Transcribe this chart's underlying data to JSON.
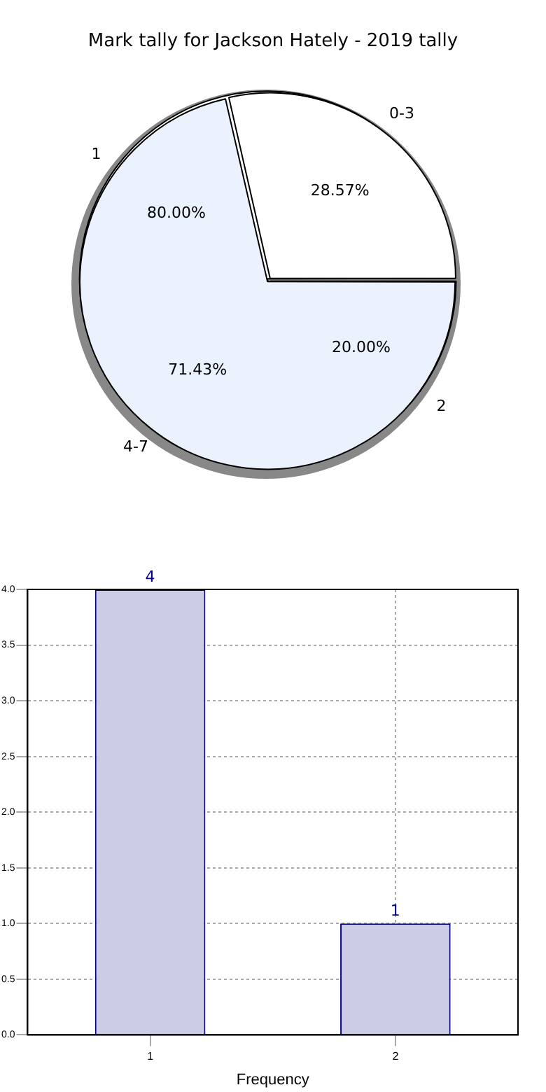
{
  "chart_data": [
    {
      "type": "pie",
      "title": "Mark tally for Jackson Hately - 2019 tally",
      "categories": [
        "0-3",
        "4-7"
      ],
      "values": [
        28.57,
        71.43
      ],
      "colors": [
        "#ffffff",
        "#ebf1fd"
      ],
      "value_labels": [
        "28.57%",
        "71.43%"
      ]
    },
    {
      "type": "pie",
      "categories": [
        "1",
        "2"
      ],
      "values": [
        80,
        20
      ],
      "colors": [
        "#ffffff",
        "#ebf1fd"
      ],
      "value_labels": [
        "80.00%",
        "20.00%"
      ]
    },
    {
      "type": "bar",
      "categories": [
        "1",
        "2"
      ],
      "values": [
        4,
        1
      ],
      "color": "#cccce6",
      "xlabel": "Frequency",
      "ylim": [
        0,
        4
      ],
      "yticks": [
        {
          "value": 0,
          "label": "0.0"
        },
        {
          "value": 0.5,
          "label": "0.5"
        },
        {
          "value": 1,
          "label": "1.0"
        },
        {
          "value": 1.5,
          "label": "1.5"
        },
        {
          "value": 2,
          "label": "2.0"
        },
        {
          "value": 2.5,
          "label": "2.5"
        },
        {
          "value": 3,
          "label": "3.0"
        },
        {
          "value": 3.5,
          "label": "3.5"
        },
        {
          "value": 4,
          "label": "4.0"
        }
      ],
      "grid": true,
      "data_labels": true
    }
  ]
}
